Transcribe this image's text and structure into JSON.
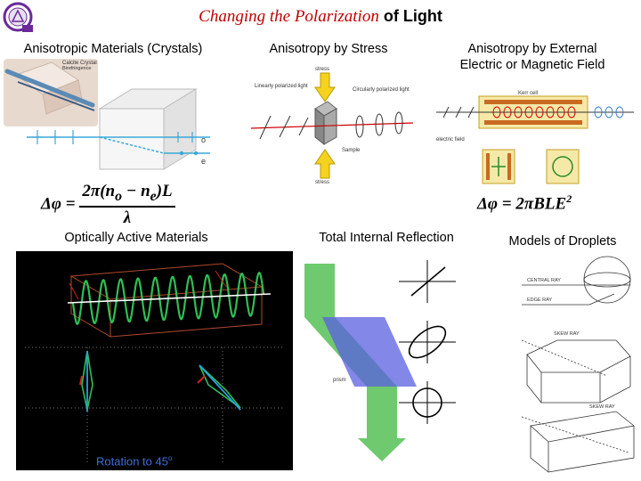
{
  "title": {
    "italic": "Changing the Polarization",
    "rest": " of Light"
  },
  "sections": {
    "crystals": {
      "label": "Anisotropic Materials (Crystals)",
      "inset": "Calcite Crystal Birefringence",
      "ray_o": "o",
      "ray_e": "e"
    },
    "stress": {
      "label": "Anisotropy by Stress",
      "stress_top": "stress",
      "stress_bottom": "stress",
      "linear": "Linearly polarized light",
      "circular": "Circularly polarized light",
      "sample": "Sample"
    },
    "field": {
      "label_line1": "Anisotropy by External",
      "label_line2": "Electric or Magnetic Field",
      "kerr": "Kerr cell",
      "electric": "electric field"
    },
    "optical": {
      "label": "Optically Active Materials",
      "caption": "Rotation to 45",
      "deg": "o"
    },
    "tir": {
      "label": "Total Internal Reflection",
      "prism": "prism"
    },
    "droplets": {
      "label": "Models of Droplets",
      "central": "CENTRAL RAY",
      "edge": "EDGE RAY",
      "skew1": "SKEW RAY",
      "skew2": "SKEW RAY"
    }
  },
  "formulas": {
    "crystal": {
      "lhs": "Δφ = ",
      "num": "2π(n",
      "sub_o": "o",
      "minus": " − n",
      "sub_e": "e",
      "close": ")L",
      "den": "λ"
    },
    "field": {
      "text": "Δφ = 2πBLE",
      "sup": "2"
    }
  },
  "colors": {
    "title_accent": "#c00000",
    "caption": "#3a6fd8",
    "arrow_yellow": "#f4d21f",
    "tir_green": "#5fc35f",
    "tir_blue": "#5a5fe0"
  }
}
